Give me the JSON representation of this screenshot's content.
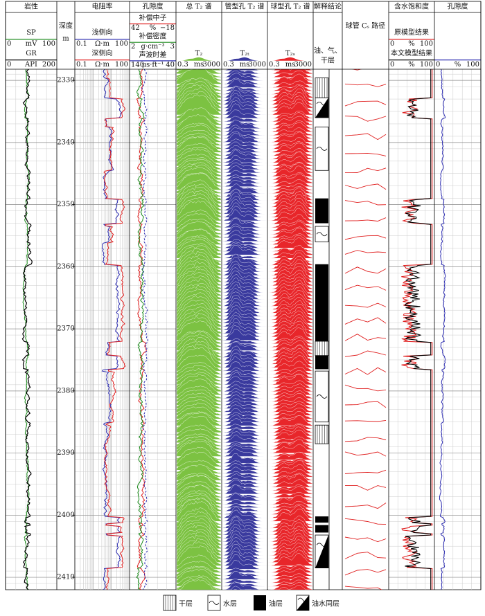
{
  "tracks": [
    {
      "title": "岩性",
      "curves": [
        {
          "name": "SP",
          "unit": "mV",
          "min": "0",
          "max": "100",
          "color": "#1a8a1a"
        },
        {
          "name": "GR",
          "unit": "API",
          "min": "0",
          "max": "200",
          "color": "#000000"
        }
      ]
    },
    {
      "title": "深度",
      "unit": "m"
    },
    {
      "title": "电阻率",
      "curves": [
        {
          "name": "浅侧向",
          "unit": "Ω·m",
          "min": "0.1",
          "max": "100",
          "color": "#2b2bb0"
        },
        {
          "name": "深侧向",
          "unit": "Ω·m",
          "min": "0.1",
          "max": "100",
          "color": "#e02020"
        }
      ]
    },
    {
      "title": "孔隙度",
      "curves": [
        {
          "name": "补偿中子",
          "unit": "%",
          "min": "42",
          "max": "−18",
          "color": "#e02020"
        },
        {
          "name": "补偿密度",
          "unit": "g·cm⁻³",
          "min": "2",
          "max": "3",
          "color": "#1a8a1a"
        },
        {
          "name": "声波时差",
          "unit": "μs·ft⁻¹",
          "min": "140",
          "max": "40",
          "color": "#2b2bb0"
        }
      ]
    },
    {
      "title": "总 T₂ 谱",
      "curves": [
        {
          "name": "T₂",
          "unit": "ms",
          "min": "0.3",
          "max": "3000",
          "color": "#7cc242"
        }
      ]
    },
    {
      "title": "管型孔 T₂ 谱",
      "curves": [
        {
          "name": "T₂ₜ",
          "unit": "ms",
          "min": "0.3",
          "max": "3000",
          "color": "#3a3a9e"
        }
      ]
    },
    {
      "title": "球型孔 T₂ 谱",
      "curves": [
        {
          "name": "T₂ₛ",
          "unit": "ms",
          "min": "0.3",
          "max": "3000",
          "color": "#e8262a"
        }
      ]
    },
    {
      "title": "解释结论",
      "label_lines": [
        "油、气、",
        "干层"
      ]
    },
    {
      "title": "球管 Cₛ 路径"
    },
    {
      "title": "含水饱和度",
      "curves": [
        {
          "name": "原模型结果",
          "unit": "%",
          "min": "0",
          "max": "100",
          "color": "#e02020"
        },
        {
          "name": "本文模型结果",
          "unit": "%",
          "min": "0",
          "max": "100",
          "color": "#000000"
        }
      ]
    },
    {
      "title": "孔隙度",
      "curves": [
        {
          "unit": "%",
          "min": "0",
          "max": "100",
          "color": "#2b2bb0"
        }
      ]
    }
  ],
  "depth_axis": {
    "ylim": [
      2328.2,
      2412.0
    ],
    "ticks": [
      2330,
      2340,
      2350,
      2360,
      2370,
      2380,
      2390,
      2400,
      2410
    ]
  },
  "interpretation": [
    {
      "top": 2329.6,
      "bottom": 2332.8,
      "type": "干层"
    },
    {
      "top": 2332.8,
      "bottom": 2336.0,
      "type": "油水同层"
    },
    {
      "top": 2337.5,
      "bottom": 2344.5,
      "type": "水层"
    },
    {
      "top": 2349.0,
      "bottom": 2353.0,
      "type": "油层"
    },
    {
      "top": 2353.5,
      "bottom": 2356.0,
      "type": "水层"
    },
    {
      "top": 2359.6,
      "bottom": 2372.0,
      "type": "油层"
    },
    {
      "top": 2372.0,
      "bottom": 2374.3,
      "type": "干层"
    },
    {
      "top": 2374.3,
      "bottom": 2376.5,
      "type": "油层"
    },
    {
      "top": 2376.8,
      "bottom": 2385.0,
      "type": "水层"
    },
    {
      "top": 2385.5,
      "bottom": 2388.5,
      "type": "干层"
    },
    {
      "top": 2400.2,
      "bottom": 2401.2,
      "type": "油层"
    },
    {
      "top": 2401.6,
      "bottom": 2402.8,
      "type": "油层"
    },
    {
      "top": 2403.2,
      "bottom": 2408.5,
      "type": "油水同层"
    }
  ],
  "legend": [
    "干层",
    "水层",
    "油层",
    "油水同层"
  ]
}
